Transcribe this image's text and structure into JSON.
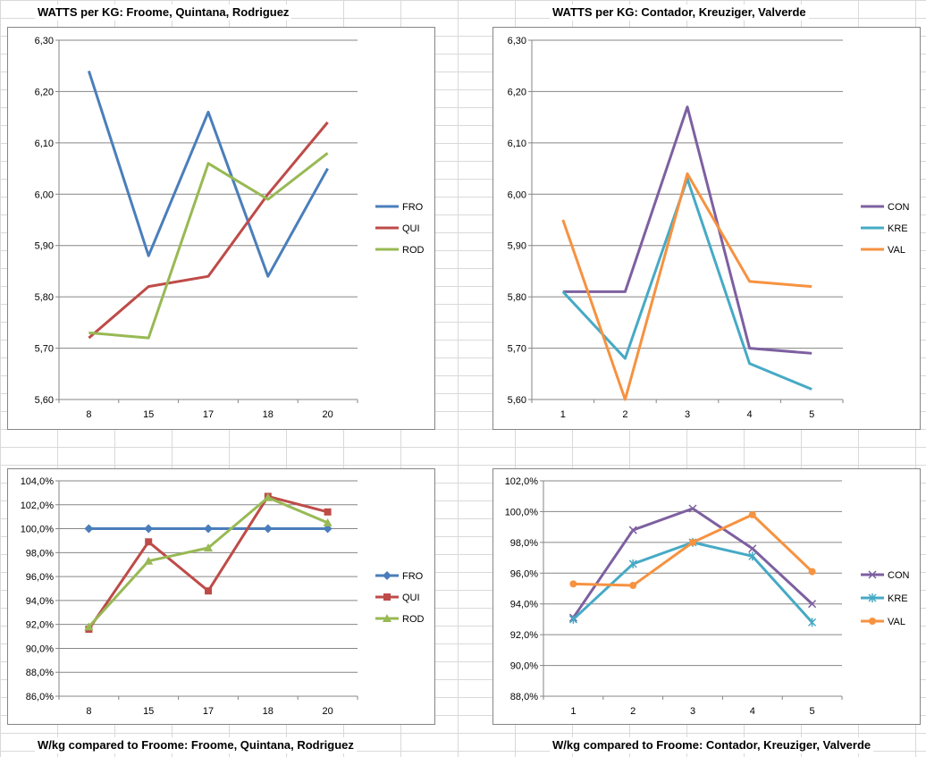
{
  "titles": {
    "tl": "WATTS per KG: Froome, Quintana, Rodriguez",
    "tr": "WATTS per KG: Contador, Kreuziger, Valverde",
    "bl": "W/kg compared to Froome: Froome, Quintana, Rodriguez",
    "br": "W/kg compared to Froome: Contador, Kreuziger, Valverde"
  },
  "chart_data": [
    {
      "id": "tl",
      "type": "line",
      "title": "WATTS per KG: Froome, Quintana, Rodriguez",
      "categories": [
        "8",
        "15",
        "17",
        "18",
        "20"
      ],
      "ylim": [
        5.6,
        6.3
      ],
      "ytick_step": 0.1,
      "yticks": [
        "5,60",
        "5,70",
        "5,80",
        "5,90",
        "6,00",
        "6,10",
        "6,20",
        "6,30"
      ],
      "grid": true,
      "legend_position": "right",
      "series": [
        {
          "name": "FRO",
          "color": "#4a7ebb",
          "marker": "none",
          "values": [
            6.24,
            5.88,
            6.16,
            5.84,
            6.05
          ]
        },
        {
          "name": "QUI",
          "color": "#be4b48",
          "marker": "none",
          "values": [
            5.72,
            5.82,
            5.84,
            6.0,
            6.14
          ]
        },
        {
          "name": "ROD",
          "color": "#98b954",
          "marker": "none",
          "values": [
            5.73,
            5.72,
            6.06,
            5.99,
            6.08
          ]
        }
      ]
    },
    {
      "id": "tr",
      "type": "line",
      "title": "WATTS per KG: Contador, Kreuziger, Valverde",
      "categories": [
        "1",
        "2",
        "3",
        "4",
        "5"
      ],
      "ylim": [
        5.6,
        6.3
      ],
      "ytick_step": 0.1,
      "yticks": [
        "5,60",
        "5,70",
        "5,80",
        "5,90",
        "6,00",
        "6,10",
        "6,20",
        "6,30"
      ],
      "grid": true,
      "legend_position": "right",
      "series": [
        {
          "name": "CON",
          "color": "#7d60a0",
          "marker": "none",
          "values": [
            5.81,
            5.81,
            6.17,
            5.7,
            5.69
          ]
        },
        {
          "name": "KRE",
          "color": "#46aac5",
          "marker": "none",
          "values": [
            5.81,
            5.68,
            6.03,
            5.67,
            5.62
          ]
        },
        {
          "name": "VAL",
          "color": "#f69240",
          "marker": "none",
          "values": [
            5.95,
            5.6,
            6.04,
            5.83,
            5.82
          ]
        }
      ]
    },
    {
      "id": "bl",
      "type": "line",
      "title": "W/kg compared to Froome: Froome, Quintana, Rodriguez",
      "categories": [
        "8",
        "15",
        "17",
        "18",
        "20"
      ],
      "ylim": [
        86,
        104
      ],
      "ytick_step": 2,
      "yticks": [
        "86,0%",
        "88,0%",
        "90,0%",
        "92,0%",
        "94,0%",
        "96,0%",
        "98,0%",
        "100,0%",
        "102,0%",
        "104,0%"
      ],
      "grid": true,
      "legend_position": "right",
      "series": [
        {
          "name": "FRO",
          "color": "#4a7ebb",
          "marker": "diamond",
          "values": [
            100.0,
            100.0,
            100.0,
            100.0,
            100.0
          ]
        },
        {
          "name": "QUI",
          "color": "#be4b48",
          "marker": "square",
          "values": [
            91.6,
            98.9,
            94.8,
            102.7,
            101.4
          ]
        },
        {
          "name": "ROD",
          "color": "#98b954",
          "marker": "triangle",
          "values": [
            91.8,
            97.3,
            98.4,
            102.6,
            100.5
          ]
        }
      ]
    },
    {
      "id": "br",
      "type": "line",
      "title": "W/kg compared to Froome: Contador, Kreuziger, Valverde",
      "categories": [
        "1",
        "2",
        "3",
        "4",
        "5"
      ],
      "ylim": [
        88,
        102
      ],
      "ytick_step": 2,
      "yticks": [
        "88,0%",
        "90,0%",
        "92,0%",
        "94,0%",
        "96,0%",
        "98,0%",
        "100,0%",
        "102,0%"
      ],
      "grid": true,
      "legend_position": "right",
      "series": [
        {
          "name": "CON",
          "color": "#7d60a0",
          "marker": "x",
          "values": [
            93.1,
            98.8,
            100.2,
            97.6,
            94.0
          ]
        },
        {
          "name": "KRE",
          "color": "#46aac5",
          "marker": "star",
          "values": [
            93.0,
            96.6,
            98.0,
            97.1,
            92.8
          ]
        },
        {
          "name": "VAL",
          "color": "#f69240",
          "marker": "circle",
          "values": [
            95.3,
            95.2,
            98.0,
            99.8,
            96.1
          ]
        }
      ]
    }
  ]
}
